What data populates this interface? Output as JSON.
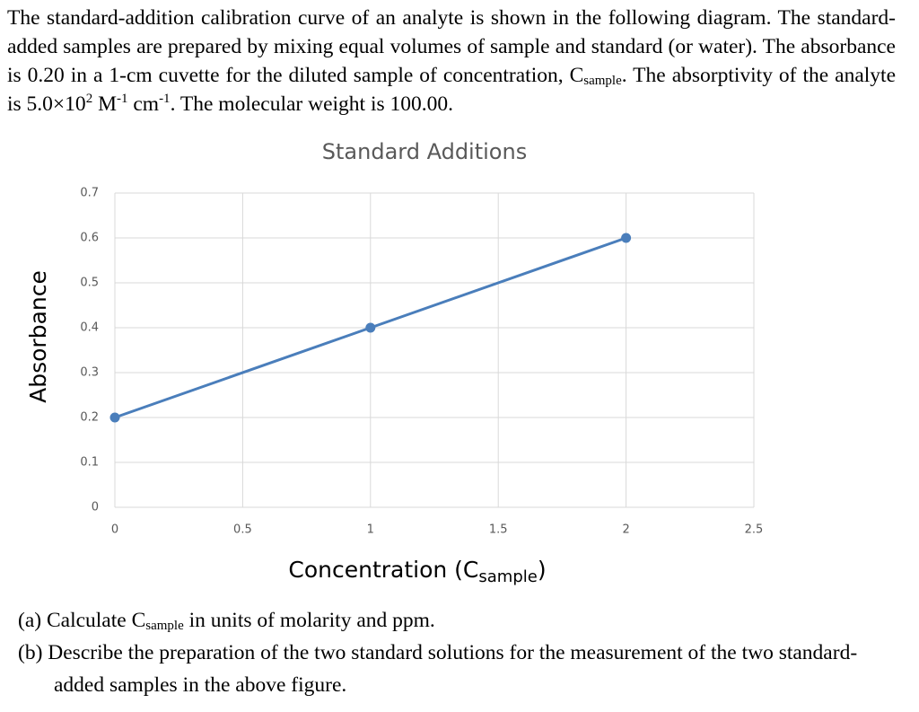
{
  "intro": [
    "The standard-addition calibration curve of an analyte is shown in the following diagram. The standard-added samples are prepared by mixing equal volumes of sample and standard (or water). The absorbance is 0.20 in a 1-cm cuvette for the diluted sample of concentration, ",
    "C",
    "sample",
    ". The absorptivity of the analyte is 5.0×10",
    "2",
    " M",
    "-1",
    " cm",
    "-1",
    ". The molecular weight is 100.00."
  ],
  "chart_data": {
    "type": "line",
    "title": "Standard Additions",
    "ylabel": "Absorbance",
    "xlabel": [
      "Concentration (C",
      "sample",
      ")"
    ],
    "x": [
      0,
      1,
      2
    ],
    "values": [
      0.2,
      0.4,
      0.6
    ],
    "color": "#4a7ebb",
    "xlim": [
      0,
      2.5
    ],
    "xticks": [
      0,
      0.5,
      1,
      1.5,
      2,
      2.5
    ],
    "ylim": [
      0,
      0.7
    ],
    "yticks": [
      0,
      0.1,
      0.2,
      0.3,
      0.4,
      0.5,
      0.6,
      0.7
    ],
    "grid": true
  },
  "questions": [
    {
      "label": "(a)",
      "text": [
        " Calculate ",
        "C",
        "sample",
        " in units of molarity and ppm."
      ]
    },
    {
      "label": "(b)",
      "text": [
        " Describe the preparation of the two standard solutions for the measurement of the two standard-added samples in the above figure."
      ]
    }
  ]
}
